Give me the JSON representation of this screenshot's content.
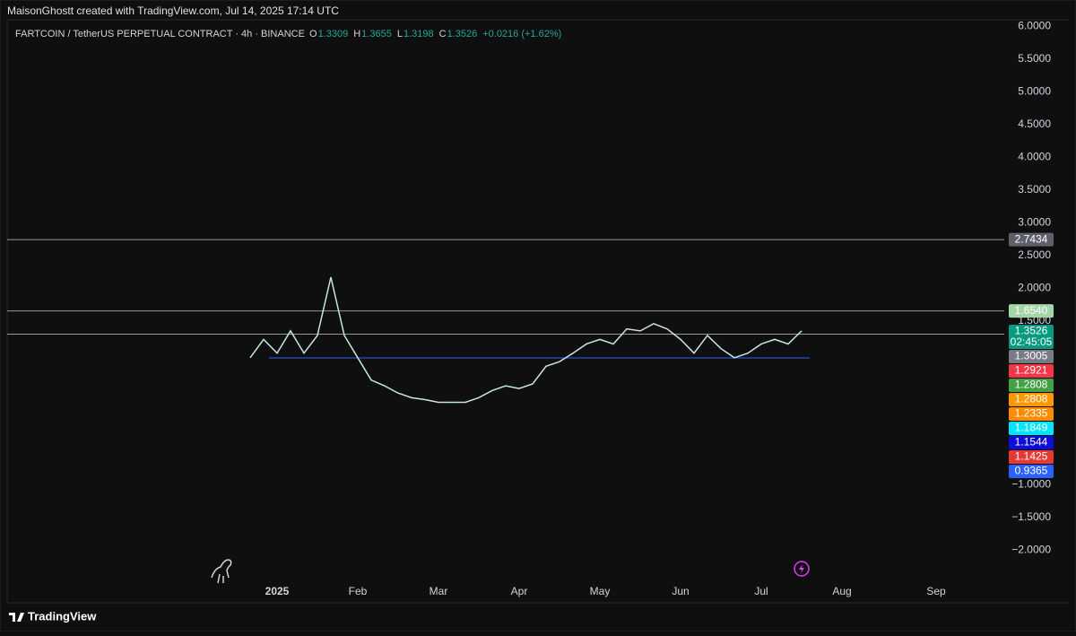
{
  "header": {
    "credit": "MaisonGhostt created with TradingView.com, Jul 14, 2025 17:14 UTC"
  },
  "legend": {
    "symbol": "FARTCOIN / TetherUS PERPETUAL CONTRACT · 4h · BINANCE",
    "ohlc": [
      {
        "key": "O",
        "value": "1.3309"
      },
      {
        "key": "H",
        "value": "1.3655"
      },
      {
        "key": "L",
        "value": "1.3198"
      },
      {
        "key": "C",
        "value": "1.3526"
      }
    ],
    "change": "+0.0216 (+1.62%)"
  },
  "chart_data": {
    "type": "line",
    "categories": [
      null,
      null,
      "2025",
      null,
      null,
      null,
      null,
      null,
      "Feb",
      null,
      null,
      null,
      null,
      null,
      "Mar",
      null,
      null,
      null,
      null,
      null,
      "Apr",
      null,
      null,
      null,
      null,
      null,
      "May",
      null,
      null,
      null,
      null,
      null,
      "Jun",
      null,
      null,
      null,
      null,
      null,
      "Jul",
      null,
      null,
      null,
      null,
      null,
      "Aug",
      null,
      null,
      null,
      null,
      null,
      null,
      "Sep",
      null
    ],
    "series": [
      {
        "color": "#c6e8da",
        "values": [
          0.94,
          1.22,
          1.01,
          1.35,
          1.01,
          1.28,
          2.17,
          1.28,
          0.94,
          0.6,
          0.51,
          0.4,
          0.33,
          0.3,
          0.26,
          0.26,
          0.26,
          0.33,
          0.44,
          0.51,
          0.47,
          0.54,
          0.81,
          0.88,
          1.01,
          1.15,
          1.22,
          1.15,
          1.38,
          1.35,
          1.46,
          1.38,
          1.22,
          1.01,
          1.28,
          1.08,
          0.94,
          1.01,
          1.15,
          1.22,
          1.15,
          1.35,
          null,
          null,
          null,
          null,
          null,
          null,
          null,
          null,
          null,
          null,
          null
        ]
      }
    ],
    "ylim": [
      -2.5,
      6.1
    ],
    "yticks": [
      {
        "value": 6,
        "label": "6.0000"
      },
      {
        "value": 5.5,
        "label": "5.5000"
      },
      {
        "value": 5,
        "label": "5.0000"
      },
      {
        "value": 4.5,
        "label": "4.5000"
      },
      {
        "value": 4,
        "label": "4.0000"
      },
      {
        "value": 3.5,
        "label": "3.5000"
      },
      {
        "value": 3,
        "label": "3.0000"
      },
      {
        "value": 2.5,
        "label": "2.5000"
      },
      {
        "value": 2,
        "label": "2.0000"
      },
      {
        "value": 1.5,
        "label": "1.5000"
      },
      {
        "value": -1,
        "label": "−1.0000"
      },
      {
        "value": -1.5,
        "label": "−1.5000"
      },
      {
        "value": -2,
        "label": "−2.0000"
      }
    ],
    "price_tags": [
      {
        "value": 2.7434,
        "color": "#5d606b",
        "line": "full"
      },
      {
        "value": 1.654,
        "label": "1.6540",
        "color": "#a5d6a7",
        "line": "full"
      },
      {
        "value": 1.3526,
        "color": "#089981",
        "countdown": "02:45:05"
      },
      {
        "value": 1.3005,
        "color": "#787b86",
        "line": "full"
      },
      {
        "value": 1.2921,
        "color": "#f23645"
      },
      {
        "value": 1.2808,
        "color": "#43a047"
      },
      {
        "value": 1.2808,
        "color": "#ff9800"
      },
      {
        "value": 1.2335,
        "color": "#ff8c00"
      },
      {
        "value": 1.1849,
        "color": "#00e5ff"
      },
      {
        "value": 1.1544,
        "color": "#0d0dd6"
      },
      {
        "value": 1.1425,
        "color": "#e53935"
      },
      {
        "value": 0.9365,
        "color": "#2962ff",
        "line": "segment"
      }
    ]
  },
  "footer": {
    "brand": "TradingView"
  }
}
